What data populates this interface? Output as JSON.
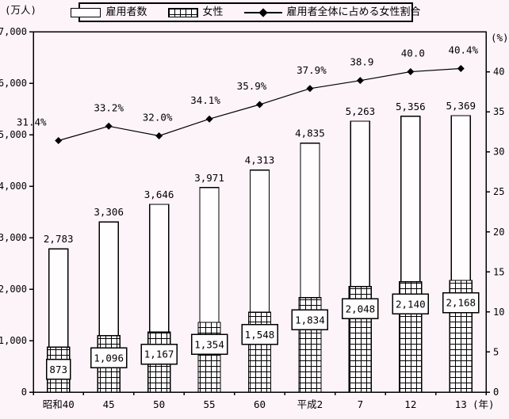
{
  "colors": {
    "background": "#fdf4fa",
    "bar_fill": "#fffdfe",
    "stroke": "#000000"
  },
  "legend": {
    "items": [
      {
        "label": "雇用者数",
        "swatch": "white-bar"
      },
      {
        "label": "女性",
        "swatch": "hatched-bar"
      },
      {
        "label": "雇用者全体に占める女性割合",
        "swatch": "line-diamond"
      }
    ]
  },
  "chart_data": {
    "type": "bar",
    "subtype": "bar-line-combo",
    "title": "",
    "categories": [
      "昭和40",
      "45",
      "50",
      "55",
      "60",
      "平成2",
      "7",
      "12",
      "13"
    ],
    "x_axis": {
      "unit_label": "(年)"
    },
    "left_axis": {
      "title": "(万人)",
      "min": 0,
      "max": 7000,
      "tick_interval": 1000,
      "tick_labels": [
        "0",
        "1,000",
        "2,000",
        "3,000",
        "4,000",
        "5,000",
        "6,000",
        "7,000"
      ]
    },
    "right_axis": {
      "title": "(%)",
      "min": 0,
      "max": 45,
      "tick_interval": 5,
      "tick_labels": [
        "0",
        "5",
        "10",
        "15",
        "20",
        "25",
        "30",
        "35",
        "40"
      ]
    },
    "grid": "off",
    "legend_position": "top",
    "series": [
      {
        "name": "雇用者数",
        "type": "bar",
        "axis": "left",
        "style": "white",
        "values": [
          2783,
          3306,
          3646,
          3971,
          4313,
          4835,
          5263,
          5356,
          5369
        ],
        "labels": [
          "2,783",
          "3,306",
          "3,646",
          "3,971",
          "4,313",
          "4,835",
          "5,263",
          "5,356",
          "5,369"
        ]
      },
      {
        "name": "女性",
        "type": "bar",
        "axis": "left",
        "style": "hatched-grid",
        "values": [
          873,
          1096,
          1167,
          1354,
          1548,
          1834,
          2048,
          2140,
          2168
        ],
        "labels": [
          "873",
          "1,096",
          "1,167",
          "1,354",
          "1,548",
          "1,834",
          "2,048",
          "2,140",
          "2,168"
        ]
      },
      {
        "name": "雇用者全体に占める女性割合",
        "type": "line",
        "axis": "right",
        "marker": "diamond",
        "values": [
          31.4,
          33.2,
          32.0,
          34.1,
          35.9,
          37.9,
          38.9,
          40.0,
          40.4
        ],
        "labels": [
          "31.4%",
          "33.2%",
          "32.0%",
          "34.1%",
          "35.9%",
          "37.9%",
          "38.9",
          "40.0",
          "40.4%"
        ],
        "label_dx": [
          -34,
          0,
          -2,
          -5,
          -10,
          2,
          2,
          3,
          3
        ]
      }
    ]
  }
}
